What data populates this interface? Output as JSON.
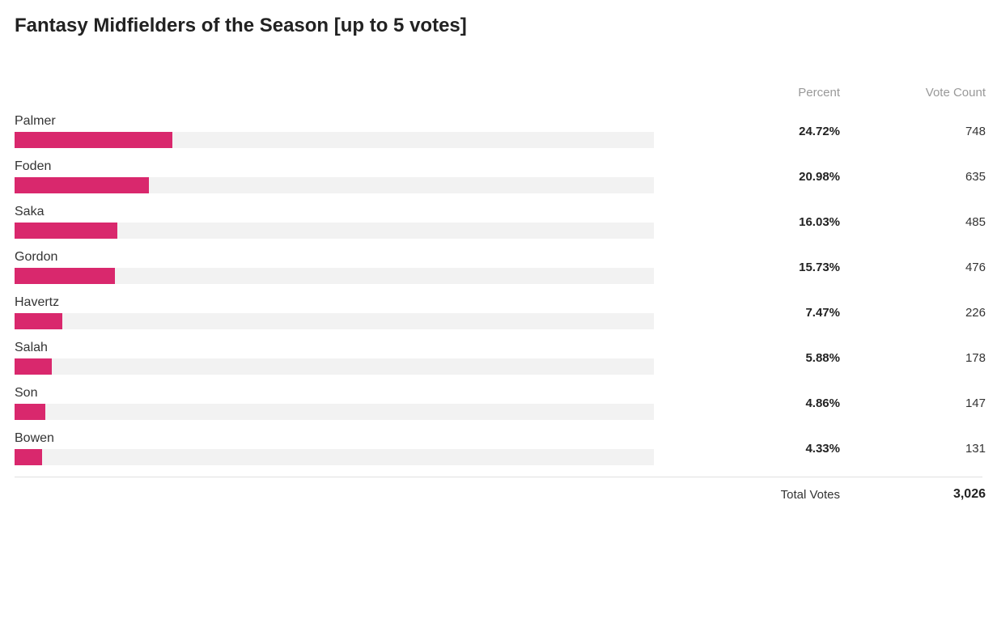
{
  "poll": {
    "title": "Fantasy Midfielders of the Season [up to 5 votes]",
    "header_percent": "Percent",
    "header_count": "Vote Count",
    "bar_color": "#d9286d",
    "track_color": "#f2f2f2",
    "text_color": "#333333",
    "header_color": "#999999",
    "divider_color": "#e0e0e0",
    "options": [
      {
        "name": "Palmer",
        "percent": "24.72%",
        "count": "748",
        "fill_pct": 24.72
      },
      {
        "name": "Foden",
        "percent": "20.98%",
        "count": "635",
        "fill_pct": 20.98
      },
      {
        "name": "Saka",
        "percent": "16.03%",
        "count": "485",
        "fill_pct": 16.03
      },
      {
        "name": "Gordon",
        "percent": "15.73%",
        "count": "476",
        "fill_pct": 15.73
      },
      {
        "name": "Havertz",
        "percent": "7.47%",
        "count": "226",
        "fill_pct": 7.47
      },
      {
        "name": "Salah",
        "percent": "5.88%",
        "count": "178",
        "fill_pct": 5.88
      },
      {
        "name": "Son",
        "percent": "4.86%",
        "count": "147",
        "fill_pct": 4.86
      },
      {
        "name": "Bowen",
        "percent": "4.33%",
        "count": "131",
        "fill_pct": 4.33
      }
    ],
    "total_label": "Total Votes",
    "total_value": "3,026"
  }
}
